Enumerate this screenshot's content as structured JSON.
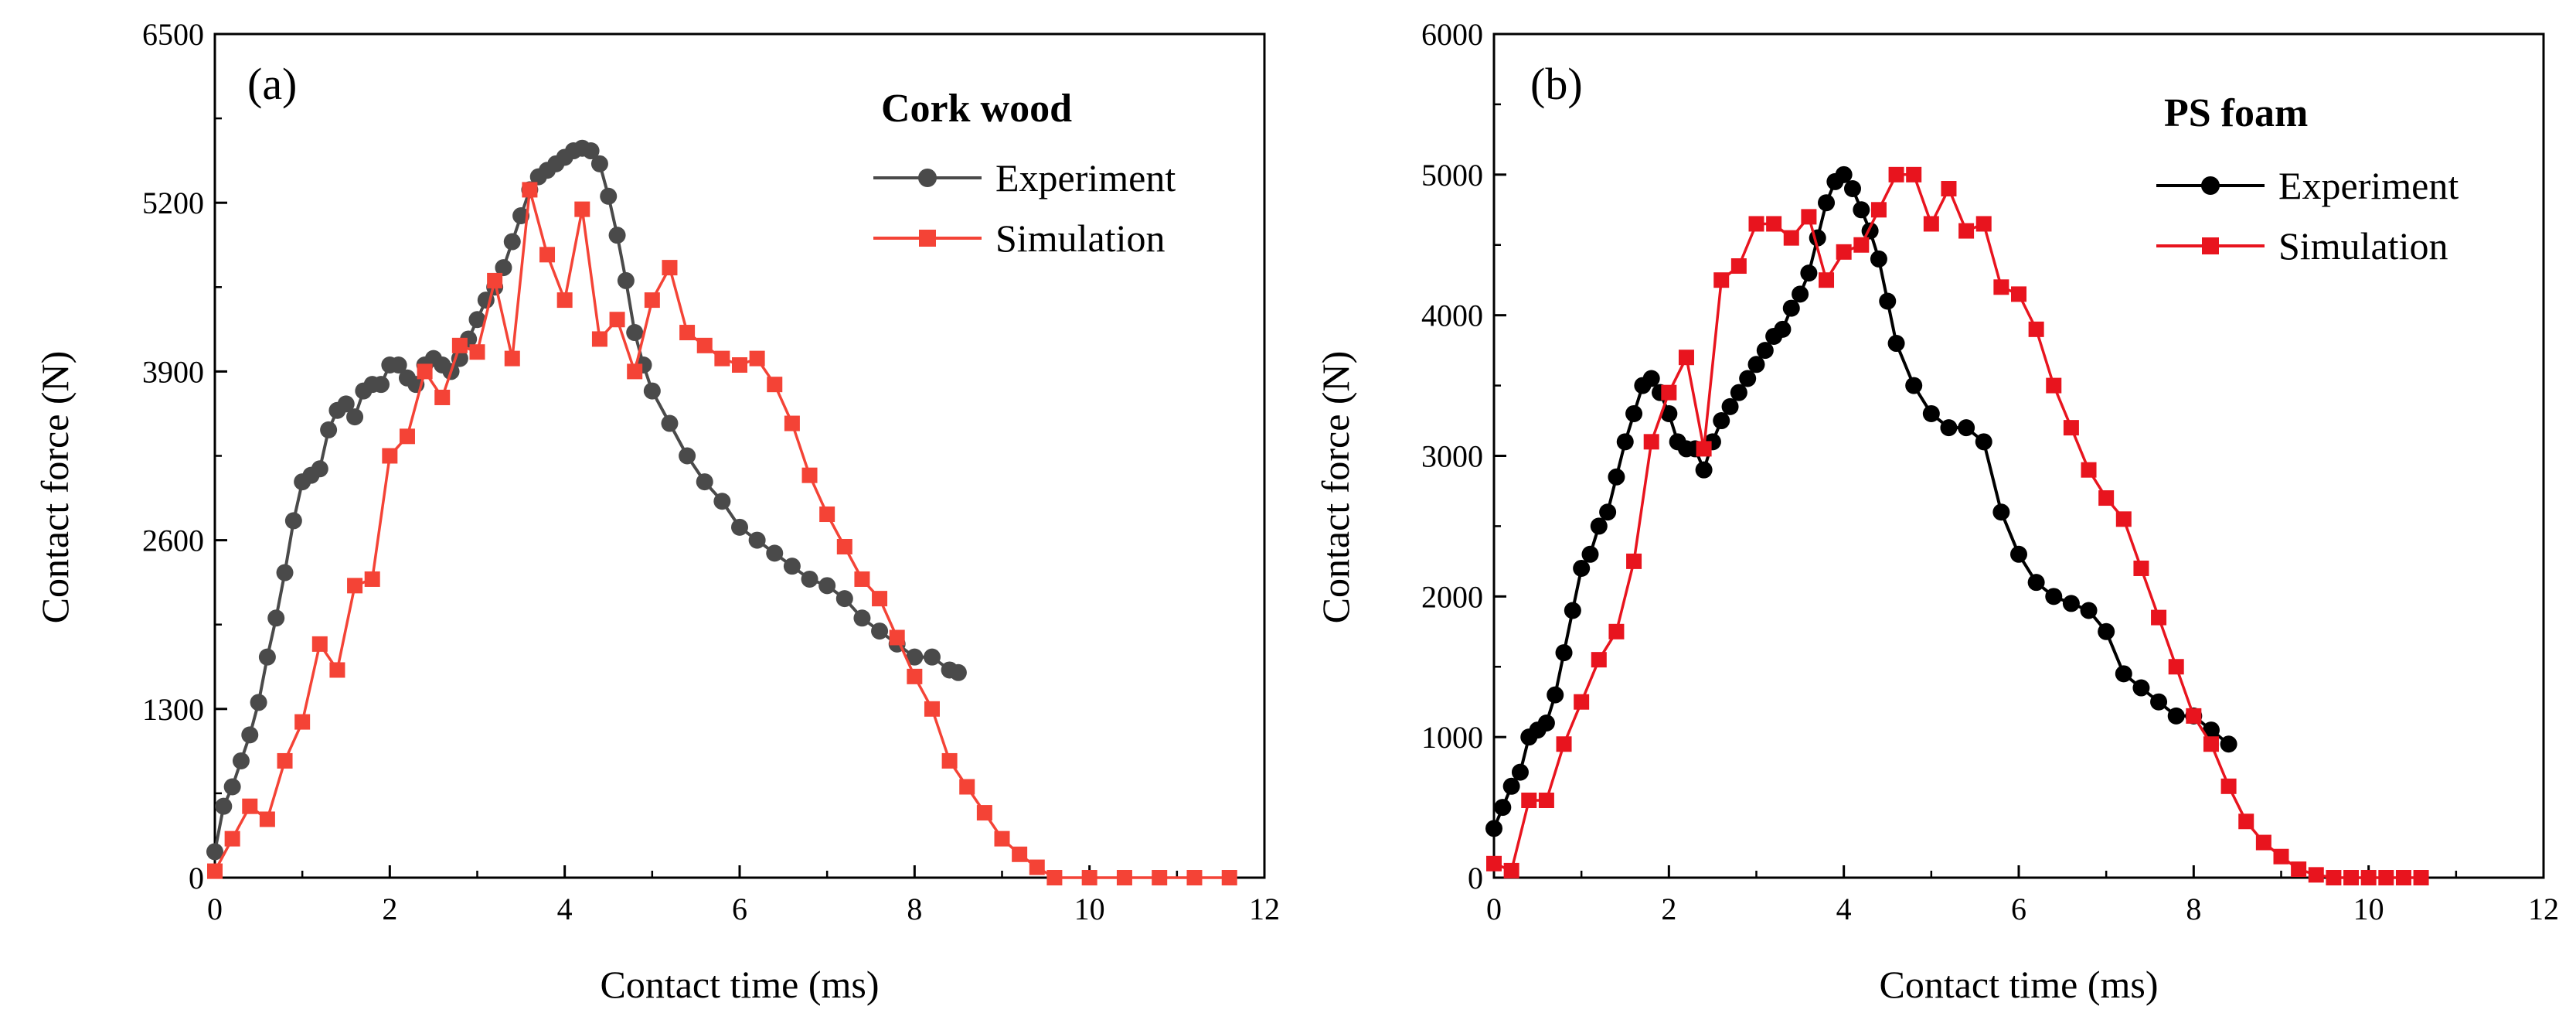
{
  "chart_data": [
    {
      "type": "line",
      "panel_label": "(a)",
      "legend_title": "Cork wood",
      "legend_position": "top-right",
      "xlabel": "Contact time (ms)",
      "ylabel": "Contact force (N)",
      "xlim": [
        0,
        12
      ],
      "ylim": [
        0,
        6500
      ],
      "xticks": [
        0,
        2,
        4,
        6,
        8,
        10,
        12
      ],
      "yticks": [
        0,
        1300,
        2600,
        3900,
        5200,
        6500
      ],
      "grid": false,
      "series": [
        {
          "name": "Experiment",
          "color": "#4a4a4a",
          "marker": "circle",
          "x": [
            0.0,
            0.1,
            0.2,
            0.3,
            0.4,
            0.5,
            0.6,
            0.7,
            0.8,
            0.9,
            1.0,
            1.1,
            1.2,
            1.3,
            1.4,
            1.5,
            1.6,
            1.7,
            1.8,
            1.9,
            2.0,
            2.1,
            2.2,
            2.3,
            2.4,
            2.5,
            2.6,
            2.7,
            2.8,
            2.9,
            3.0,
            3.1,
            3.2,
            3.3,
            3.4,
            3.5,
            3.6,
            3.7,
            3.8,
            3.9,
            4.0,
            4.1,
            4.2,
            4.3,
            4.4,
            4.5,
            4.6,
            4.7,
            4.8,
            4.9,
            5.0,
            5.2,
            5.4,
            5.6,
            5.8,
            6.0,
            6.2,
            6.4,
            6.6,
            6.8,
            7.0,
            7.2,
            7.4,
            7.6,
            7.8,
            8.0,
            8.2,
            8.4,
            8.5
          ],
          "values": [
            200,
            550,
            700,
            900,
            1100,
            1350,
            1700,
            2000,
            2350,
            2750,
            3050,
            3100,
            3150,
            3450,
            3600,
            3650,
            3550,
            3750,
            3800,
            3800,
            3950,
            3950,
            3850,
            3800,
            3950,
            4000,
            3950,
            3900,
            4000,
            4150,
            4300,
            4450,
            4550,
            4700,
            4900,
            5100,
            5300,
            5400,
            5450,
            5500,
            5550,
            5600,
            5620,
            5600,
            5500,
            5250,
            4950,
            4600,
            4200,
            3950,
            3750,
            3500,
            3250,
            3050,
            2900,
            2700,
            2600,
            2500,
            2400,
            2300,
            2250,
            2150,
            2000,
            1900,
            1800,
            1700,
            1700,
            1600,
            1580
          ]
        },
        {
          "name": "Simulation",
          "color": "#f44336",
          "marker": "square",
          "x": [
            0.0,
            0.2,
            0.4,
            0.6,
            0.8,
            1.0,
            1.2,
            1.4,
            1.6,
            1.8,
            2.0,
            2.2,
            2.4,
            2.6,
            2.8,
            3.0,
            3.2,
            3.4,
            3.6,
            3.8,
            4.0,
            4.2,
            4.4,
            4.6,
            4.8,
            5.0,
            5.2,
            5.4,
            5.6,
            5.8,
            6.0,
            6.2,
            6.4,
            6.6,
            6.8,
            7.0,
            7.2,
            7.4,
            7.6,
            7.8,
            8.0,
            8.2,
            8.4,
            8.6,
            8.8,
            9.0,
            9.2,
            9.4,
            9.6,
            10.0,
            10.4,
            10.8,
            11.2,
            11.6
          ],
          "values": [
            50,
            300,
            550,
            450,
            900,
            1200,
            1800,
            1600,
            2250,
            2300,
            3250,
            3400,
            3900,
            3700,
            4100,
            4050,
            4600,
            4000,
            5300,
            4800,
            4450,
            5150,
            4150,
            4300,
            3900,
            4450,
            4700,
            4200,
            4100,
            4000,
            3950,
            4000,
            3800,
            3500,
            3100,
            2800,
            2550,
            2300,
            2150,
            1850,
            1550,
            1300,
            900,
            700,
            500,
            300,
            180,
            80,
            0,
            0,
            0,
            0,
            0,
            0
          ]
        }
      ]
    },
    {
      "type": "line",
      "panel_label": "(b)",
      "legend_title": "PS foam",
      "legend_position": "top-right",
      "xlabel": "Contact time (ms)",
      "ylabel": "Contact force (N)",
      "xlim": [
        0,
        12
      ],
      "ylim": [
        0,
        6000
      ],
      "xticks": [
        0,
        2,
        4,
        6,
        8,
        10,
        12
      ],
      "yticks": [
        0,
        1000,
        2000,
        3000,
        4000,
        5000,
        6000
      ],
      "grid": false,
      "series": [
        {
          "name": "Experiment",
          "color": "#000000",
          "marker": "circle",
          "x": [
            0.0,
            0.1,
            0.2,
            0.3,
            0.4,
            0.5,
            0.6,
            0.7,
            0.8,
            0.9,
            1.0,
            1.1,
            1.2,
            1.3,
            1.4,
            1.5,
            1.6,
            1.7,
            1.8,
            1.9,
            2.0,
            2.1,
            2.2,
            2.3,
            2.4,
            2.5,
            2.6,
            2.7,
            2.8,
            2.9,
            3.0,
            3.1,
            3.2,
            3.3,
            3.4,
            3.5,
            3.6,
            3.7,
            3.8,
            3.9,
            4.0,
            4.1,
            4.2,
            4.3,
            4.4,
            4.5,
            4.6,
            4.8,
            5.0,
            5.2,
            5.4,
            5.6,
            5.8,
            6.0,
            6.2,
            6.4,
            6.6,
            6.8,
            7.0,
            7.2,
            7.4,
            7.6,
            7.8,
            8.0,
            8.2,
            8.4
          ],
          "values": [
            350,
            500,
            650,
            750,
            1000,
            1050,
            1100,
            1300,
            1600,
            1900,
            2200,
            2300,
            2500,
            2600,
            2850,
            3100,
            3300,
            3500,
            3550,
            3450,
            3300,
            3100,
            3050,
            3050,
            2900,
            3100,
            3250,
            3350,
            3450,
            3550,
            3650,
            3750,
            3850,
            3900,
            4050,
            4150,
            4300,
            4550,
            4800,
            4950,
            5000,
            4900,
            4750,
            4600,
            4400,
            4100,
            3800,
            3500,
            3300,
            3200,
            3200,
            3100,
            2600,
            2300,
            2100,
            2000,
            1950,
            1900,
            1750,
            1450,
            1350,
            1250,
            1150,
            1150,
            1050,
            950
          ]
        },
        {
          "name": "Simulation",
          "color": "#e8141e",
          "marker": "square",
          "x": [
            0.0,
            0.2,
            0.4,
            0.6,
            0.8,
            1.0,
            1.2,
            1.4,
            1.6,
            1.8,
            2.0,
            2.2,
            2.4,
            2.6,
            2.8,
            3.0,
            3.2,
            3.4,
            3.6,
            3.8,
            4.0,
            4.2,
            4.4,
            4.6,
            4.8,
            5.0,
            5.2,
            5.4,
            5.6,
            5.8,
            6.0,
            6.2,
            6.4,
            6.6,
            6.8,
            7.0,
            7.2,
            7.4,
            7.6,
            7.8,
            8.0,
            8.2,
            8.4,
            8.6,
            8.8,
            9.0,
            9.2,
            9.4,
            9.6,
            9.8,
            10.0,
            10.2,
            10.4,
            10.6
          ],
          "values": [
            100,
            50,
            550,
            550,
            950,
            1250,
            1550,
            1750,
            2250,
            3100,
            3450,
            3700,
            3050,
            4250,
            4350,
            4650,
            4650,
            4550,
            4700,
            4250,
            4450,
            4500,
            4750,
            5000,
            5000,
            4650,
            4900,
            4600,
            4650,
            4200,
            4150,
            3900,
            3500,
            3200,
            2900,
            2700,
            2550,
            2200,
            1850,
            1500,
            1150,
            950,
            650,
            400,
            250,
            150,
            60,
            20,
            0,
            0,
            0,
            0,
            0,
            0
          ]
        }
      ]
    }
  ]
}
